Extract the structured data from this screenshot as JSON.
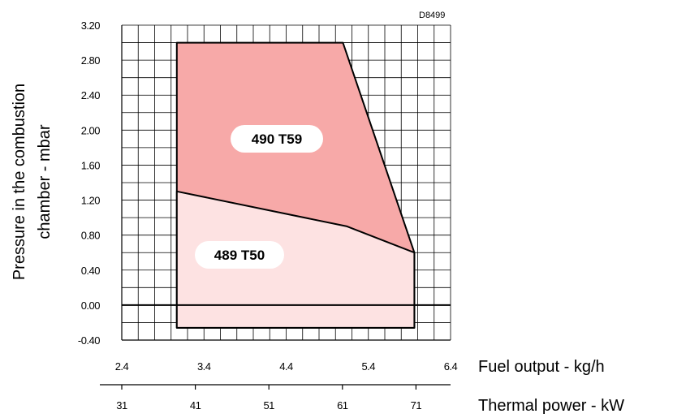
{
  "chart_data": {
    "type": "area",
    "drawing_code": "D8499",
    "ylabel_lines": [
      "Pressure in the combustion",
      "chamber - mbar"
    ],
    "y_ticks": [
      "3.20",
      "2.80",
      "2.40",
      "2.00",
      "1.60",
      "1.20",
      "0.80",
      "0.40",
      "0.00",
      "-0.40"
    ],
    "ylim": [
      -0.4,
      3.2
    ],
    "x_axes": [
      {
        "label": "Fuel output - kg/h",
        "ticks": [
          "2.4",
          "3.4",
          "4.4",
          "5.4",
          "6.4"
        ],
        "xlim": [
          2.4,
          6.4
        ]
      },
      {
        "label": "Thermal power - kW",
        "ticks": [
          "31",
          "41",
          "51",
          "61",
          "71"
        ],
        "values": [
          31,
          41,
          51,
          61,
          71
        ]
      }
    ],
    "grid": true,
    "series": [
      {
        "name": "490 T59",
        "color": "#f7a9a8",
        "points": [
          [
            3.07,
            -0.26
          ],
          [
            3.07,
            3.0
          ],
          [
            5.09,
            3.0
          ],
          [
            5.96,
            0.6
          ],
          [
            5.96,
            -0.26
          ]
        ]
      },
      {
        "name": "489 T50",
        "color": "#fde2e2",
        "points": [
          [
            3.07,
            -0.26
          ],
          [
            3.07,
            1.3
          ],
          [
            5.14,
            0.9
          ],
          [
            5.96,
            0.6
          ],
          [
            5.96,
            -0.26
          ]
        ]
      }
    ],
    "boundary_line_color": "#000000"
  }
}
